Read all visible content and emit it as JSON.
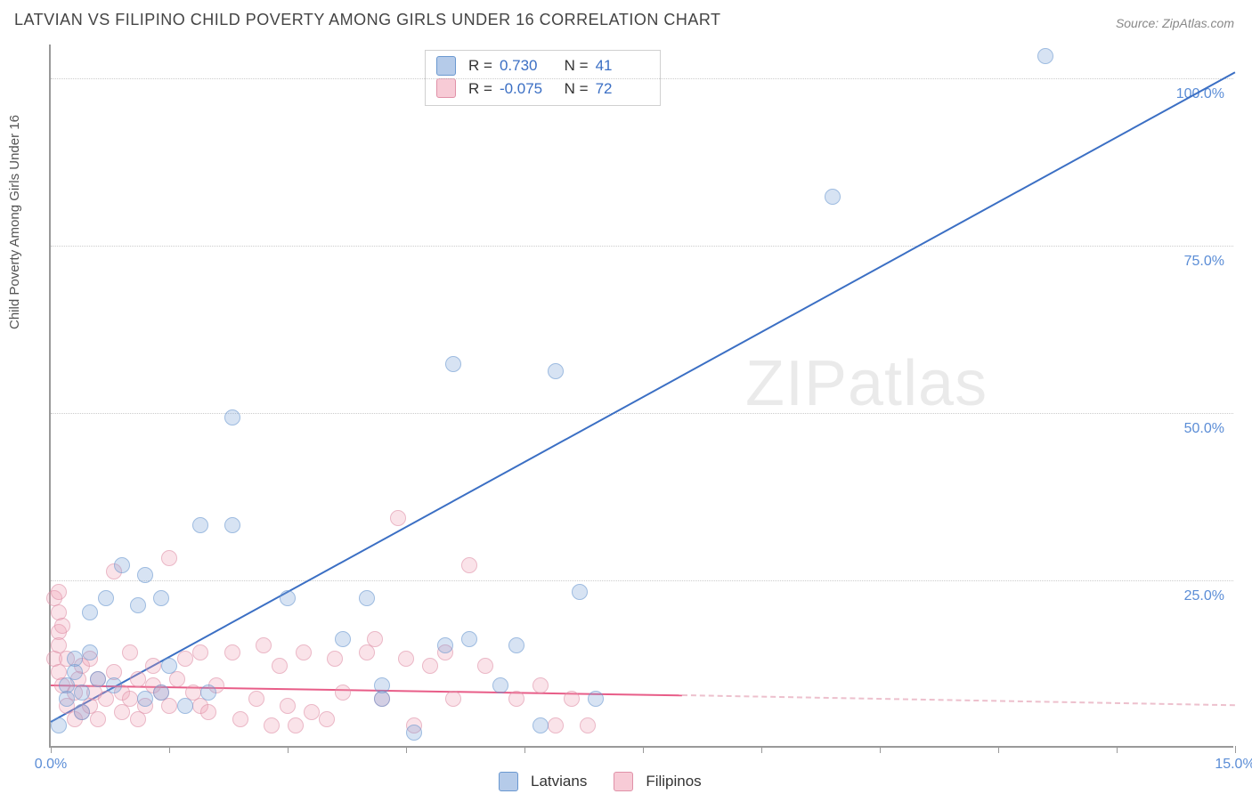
{
  "title": "LATVIAN VS FILIPINO CHILD POVERTY AMONG GIRLS UNDER 16 CORRELATION CHART",
  "source": "Source: ZipAtlas.com",
  "chart": {
    "type": "scatter",
    "ylabel": "Child Poverty Among Girls Under 16",
    "xlim": [
      0,
      15
    ],
    "ylim": [
      0,
      105
    ],
    "yticks": [
      25,
      50,
      75,
      100
    ],
    "ytick_labels": [
      "25.0%",
      "50.0%",
      "75.0%",
      "100.0%"
    ],
    "xticks": [
      0,
      1.5,
      3.0,
      4.5,
      6.0,
      7.5,
      9.0,
      10.5,
      12.0,
      13.5,
      15.0
    ],
    "xtick_labels_shown": {
      "0": "0.0%",
      "15": "15.0%"
    },
    "background_color": "#ffffff",
    "grid_color": "#cccccc",
    "axis_color": "#999999",
    "marker_size": 18,
    "series": [
      {
        "name": "Latvians",
        "color_fill": "rgba(120,160,215,0.45)",
        "color_stroke": "#6a98d0",
        "stats": {
          "R": "0.730",
          "N": "41"
        },
        "trend": {
          "x1": 0,
          "y1": 4,
          "x2": 15,
          "y2": 101,
          "color": "#3b6fc4",
          "width": 2.5,
          "style": "solid"
        },
        "points": [
          [
            0.1,
            3
          ],
          [
            0.2,
            9
          ],
          [
            0.2,
            7
          ],
          [
            0.3,
            11
          ],
          [
            0.3,
            13
          ],
          [
            0.4,
            8
          ],
          [
            0.5,
            14
          ],
          [
            0.5,
            20
          ],
          [
            0.6,
            10
          ],
          [
            0.7,
            22
          ],
          [
            0.8,
            9
          ],
          [
            0.9,
            27
          ],
          [
            1.1,
            21
          ],
          [
            1.2,
            25.5
          ],
          [
            1.2,
            7
          ],
          [
            1.4,
            22
          ],
          [
            1.4,
            8
          ],
          [
            1.5,
            12
          ],
          [
            1.7,
            6
          ],
          [
            1.9,
            33
          ],
          [
            2.0,
            8
          ],
          [
            2.3,
            33
          ],
          [
            2.3,
            49
          ],
          [
            3.0,
            22
          ],
          [
            3.7,
            16
          ],
          [
            4.0,
            22
          ],
          [
            4.2,
            9
          ],
          [
            4.2,
            7
          ],
          [
            4.6,
            2
          ],
          [
            5.0,
            15
          ],
          [
            5.1,
            57
          ],
          [
            5.3,
            16
          ],
          [
            5.7,
            9
          ],
          [
            5.9,
            15
          ],
          [
            6.2,
            3
          ],
          [
            6.4,
            56
          ],
          [
            6.7,
            23
          ],
          [
            6.9,
            7
          ],
          [
            9.9,
            82
          ],
          [
            12.6,
            103
          ],
          [
            0.4,
            5
          ]
        ]
      },
      {
        "name": "Filipinos",
        "color_fill": "rgba(240,160,180,0.45)",
        "color_stroke": "#e091a8",
        "stats": {
          "R": "-0.075",
          "N": "72"
        },
        "trend_solid": {
          "x1": 0,
          "y1": 9.5,
          "x2": 8,
          "y2": 8.0,
          "color": "#e85d88",
          "width": 2.5
        },
        "trend_dashed": {
          "x1": 8,
          "y1": 8.0,
          "x2": 15,
          "y2": 6.5,
          "color": "#edc0cd",
          "width": 2
        },
        "points": [
          [
            0.05,
            13
          ],
          [
            0.05,
            22
          ],
          [
            0.1,
            20
          ],
          [
            0.1,
            23
          ],
          [
            0.1,
            17
          ],
          [
            0.1,
            15
          ],
          [
            0.1,
            11
          ],
          [
            0.15,
            18
          ],
          [
            0.15,
            9
          ],
          [
            0.2,
            13
          ],
          [
            0.2,
            6
          ],
          [
            0.3,
            8
          ],
          [
            0.3,
            4
          ],
          [
            0.35,
            10
          ],
          [
            0.4,
            12
          ],
          [
            0.4,
            5
          ],
          [
            0.5,
            13
          ],
          [
            0.5,
            6
          ],
          [
            0.55,
            8
          ],
          [
            0.6,
            10
          ],
          [
            0.6,
            4
          ],
          [
            0.7,
            7
          ],
          [
            0.8,
            11
          ],
          [
            0.8,
            26
          ],
          [
            0.9,
            8
          ],
          [
            0.9,
            5
          ],
          [
            1.0,
            14
          ],
          [
            1.0,
            7
          ],
          [
            1.1,
            10
          ],
          [
            1.1,
            4
          ],
          [
            1.2,
            6
          ],
          [
            1.3,
            12
          ],
          [
            1.3,
            9
          ],
          [
            1.4,
            8
          ],
          [
            1.5,
            28
          ],
          [
            1.5,
            6
          ],
          [
            1.6,
            10
          ],
          [
            1.7,
            13
          ],
          [
            1.8,
            8
          ],
          [
            1.9,
            14
          ],
          [
            1.9,
            6
          ],
          [
            2.0,
            5
          ],
          [
            2.1,
            9
          ],
          [
            2.3,
            14
          ],
          [
            2.4,
            4
          ],
          [
            2.6,
            7
          ],
          [
            2.7,
            15
          ],
          [
            2.8,
            3
          ],
          [
            2.9,
            12
          ],
          [
            3.0,
            6
          ],
          [
            3.1,
            3
          ],
          [
            3.2,
            14
          ],
          [
            3.3,
            5
          ],
          [
            3.5,
            4
          ],
          [
            3.6,
            13
          ],
          [
            3.7,
            8
          ],
          [
            4.0,
            14
          ],
          [
            4.1,
            16
          ],
          [
            4.2,
            7
          ],
          [
            4.4,
            34
          ],
          [
            4.5,
            13
          ],
          [
            4.6,
            3
          ],
          [
            4.8,
            12
          ],
          [
            5.0,
            14
          ],
          [
            5.1,
            7
          ],
          [
            5.3,
            27
          ],
          [
            5.5,
            12
          ],
          [
            5.9,
            7
          ],
          [
            6.2,
            9
          ],
          [
            6.4,
            3
          ],
          [
            6.6,
            7
          ],
          [
            6.8,
            3
          ]
        ]
      }
    ],
    "legend_stats_position": "top-center",
    "bottom_legend": [
      "Latvians",
      "Filipinos"
    ],
    "watermark": "ZIPatlas"
  }
}
